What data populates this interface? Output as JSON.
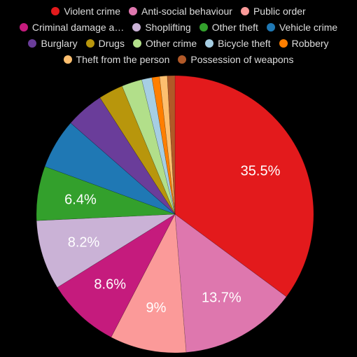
{
  "chart_data": {
    "type": "pie",
    "title": "",
    "legend_position": "top",
    "slices": [
      {
        "name": "Violent crime",
        "legend_label": "Violent crime",
        "value": 35.5,
        "label": "35.5%",
        "color": "#e31a1c"
      },
      {
        "name": "Anti-social behaviour",
        "legend_label": "Anti-social behaviour",
        "value": 13.7,
        "label": "13.7%",
        "color": "#de77ae"
      },
      {
        "name": "Public order",
        "legend_label": "Public order",
        "value": 9.0,
        "label": "9%",
        "color": "#fb9a99"
      },
      {
        "name": "Criminal damage and arson",
        "legend_label": "Criminal damage a…",
        "value": 8.6,
        "label": "8.6%",
        "color": "#c51b7d"
      },
      {
        "name": "Shoplifting",
        "legend_label": "Shoplifting",
        "value": 8.2,
        "label": "8.2%",
        "color": "#cab2d6"
      },
      {
        "name": "Other theft",
        "legend_label": "Other theft",
        "value": 6.4,
        "label": "6.4%",
        "color": "#33a02c"
      },
      {
        "name": "Vehicle crime",
        "legend_label": "Vehicle crime",
        "value": 5.9,
        "label": "",
        "color": "#1f78b4"
      },
      {
        "name": "Burglary",
        "legend_label": "Burglary",
        "value": 4.5,
        "label": "",
        "color": "#6a3d9a"
      },
      {
        "name": "Drugs",
        "legend_label": "Drugs",
        "value": 2.9,
        "label": "",
        "color": "#b8960c"
      },
      {
        "name": "Other crime",
        "legend_label": "Other crime",
        "value": 2.4,
        "label": "",
        "color": "#b2df8a"
      },
      {
        "name": "Bicycle theft",
        "legend_label": "Bicycle theft",
        "value": 1.2,
        "label": "",
        "color": "#a6cee3"
      },
      {
        "name": "Robbery",
        "legend_label": "Robbery",
        "value": 0.9,
        "label": "",
        "color": "#ff7f00"
      },
      {
        "name": "Theft from the person",
        "legend_label": "Theft from the person",
        "value": 0.9,
        "label": "",
        "color": "#fdbf6f"
      },
      {
        "name": "Possession of weapons",
        "legend_label": "Possession of weapons",
        "value": 0.9,
        "label": "",
        "color": "#b15928"
      }
    ]
  }
}
